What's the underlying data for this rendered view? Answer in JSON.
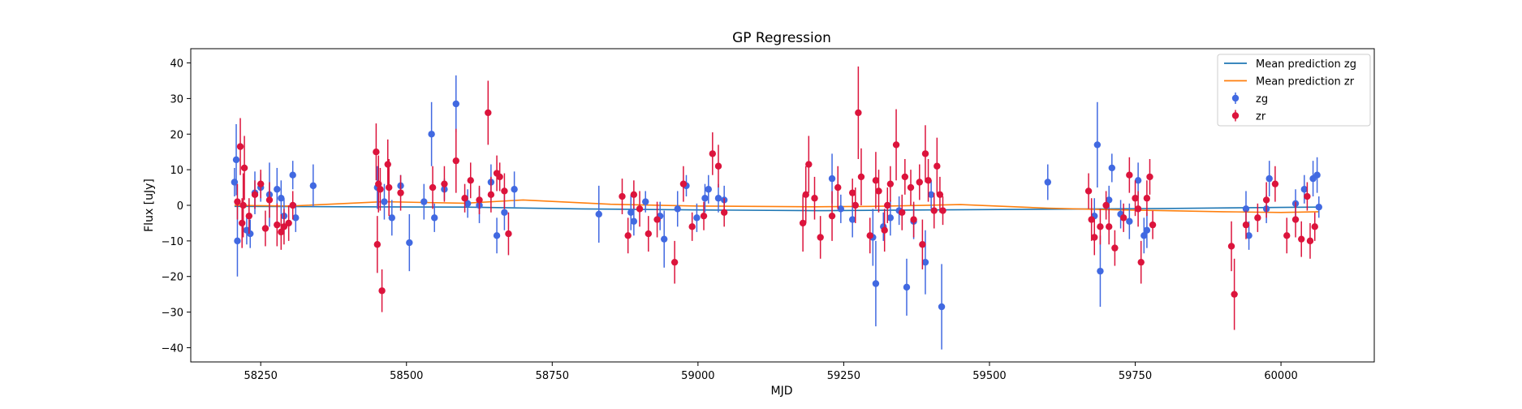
{
  "chart_data": {
    "type": "scatter",
    "title": "GP Regression",
    "xlabel": "MJD",
    "ylabel": "Flux [uJy]",
    "xlim": [
      58130,
      60160
    ],
    "ylim": [
      -44,
      44
    ],
    "xticks": [
      58250,
      58500,
      58750,
      59000,
      59250,
      59500,
      59750,
      60000
    ],
    "yticks": [
      -40,
      -30,
      -20,
      -10,
      0,
      10,
      20,
      30,
      40
    ],
    "grid": false,
    "legend_position": "top-right",
    "colors": {
      "mean_zg": "#1f77b4",
      "mean_zr": "#ff7f0e",
      "points_zg": "#4169e1",
      "points_zr": "#dc143c"
    },
    "legend": [
      {
        "label": "Mean prediction zg",
        "kind": "line",
        "color": "#1f77b4"
      },
      {
        "label": "Mean prediction zr",
        "kind": "line",
        "color": "#ff7f0e"
      },
      {
        "label": "zg",
        "kind": "errorbar",
        "color": "#4169e1"
      },
      {
        "label": "zr",
        "kind": "errorbar",
        "color": "#dc143c"
      }
    ],
    "mean_series": [
      {
        "name": "Mean prediction zg",
        "x": [
          58205,
          58400,
          58600,
          58800,
          59000,
          59200,
          59400,
          59600,
          59800,
          60000,
          60065
        ],
        "y": [
          -0.3,
          -0.4,
          -0.5,
          -1.0,
          -1.3,
          -1.5,
          -1.3,
          -1.1,
          -0.9,
          -0.6,
          -0.5
        ]
      },
      {
        "name": "Mean prediction zr",
        "x": [
          58205,
          58300,
          58460,
          58600,
          58700,
          58850,
          59000,
          59200,
          59300,
          59450,
          59600,
          59700,
          59800,
          59900,
          60000,
          60065
        ],
        "y": [
          0.0,
          -0.2,
          1.0,
          0.6,
          1.5,
          0.3,
          -0.2,
          -0.4,
          -0.3,
          0.2,
          -0.8,
          -1.2,
          -1.5,
          -1.8,
          -2.0,
          -1.8
        ]
      }
    ],
    "series": [
      {
        "name": "zg",
        "points": [
          [
            58205,
            6.5,
            4
          ],
          [
            58208,
            12.8,
            10
          ],
          [
            58210,
            -10,
            10
          ],
          [
            58226,
            -7,
            4
          ],
          [
            58232,
            -8,
            4
          ],
          [
            58240,
            3.5,
            6
          ],
          [
            58250,
            5,
            4
          ],
          [
            58265,
            3,
            9
          ],
          [
            58278,
            4.5,
            6
          ],
          [
            58285,
            2,
            5
          ],
          [
            58290,
            -3,
            5
          ],
          [
            58305,
            8.5,
            4
          ],
          [
            58310,
            -3.5,
            4
          ],
          [
            58340,
            5.5,
            6
          ],
          [
            58450,
            5,
            6
          ],
          [
            58462,
            1,
            5
          ],
          [
            58475,
            -3.5,
            5
          ],
          [
            58490,
            5.5,
            3
          ],
          [
            58505,
            -10.5,
            8
          ],
          [
            58530,
            1,
            5
          ],
          [
            58543,
            20,
            9
          ],
          [
            58548,
            -3.5,
            4
          ],
          [
            58565,
            4.5,
            3
          ],
          [
            58585,
            28.5,
            8
          ],
          [
            58605,
            0.5,
            4
          ],
          [
            58625,
            0,
            5
          ],
          [
            58645,
            6.5,
            5
          ],
          [
            58655,
            -8.5,
            5
          ],
          [
            58668,
            -2,
            5
          ],
          [
            58685,
            4.5,
            5
          ],
          [
            58830,
            -2.5,
            8
          ],
          [
            58885,
            -2,
            5
          ],
          [
            58890,
            -4.5,
            4
          ],
          [
            58910,
            1,
            3
          ],
          [
            58935,
            -3,
            4
          ],
          [
            58942,
            -9.5,
            8
          ],
          [
            58965,
            -1,
            5
          ],
          [
            58980,
            5.5,
            3
          ],
          [
            58998,
            -3.5,
            4
          ],
          [
            59012,
            2,
            4
          ],
          [
            59018,
            4.5,
            4
          ],
          [
            59035,
            2,
            4
          ],
          [
            59045,
            1.5,
            4
          ],
          [
            59230,
            7.5,
            7
          ],
          [
            59245,
            -1,
            4
          ],
          [
            59265,
            -4,
            5
          ],
          [
            59300,
            -9,
            8
          ],
          [
            59305,
            -22,
            12
          ],
          [
            59318,
            -6,
            4
          ],
          [
            59330,
            -3.5,
            5
          ],
          [
            59345,
            -1.5,
            4
          ],
          [
            59358,
            -23,
            8
          ],
          [
            59370,
            -4.5,
            5
          ],
          [
            59390,
            -16,
            9
          ],
          [
            59400,
            3,
            4
          ],
          [
            59418,
            -28.5,
            12
          ],
          [
            59600,
            6.5,
            5
          ],
          [
            59680,
            -3,
            5
          ],
          [
            59685,
            17,
            12
          ],
          [
            59690,
            -18.5,
            10
          ],
          [
            59705,
            1.5,
            4
          ],
          [
            59710,
            10.5,
            4
          ],
          [
            59725,
            -2.5,
            4
          ],
          [
            59740,
            -4.5,
            5
          ],
          [
            59755,
            7,
            5
          ],
          [
            59765,
            -8.5,
            5
          ],
          [
            59770,
            -7,
            5
          ],
          [
            59940,
            -1,
            5
          ],
          [
            59945,
            -8.5,
            4
          ],
          [
            59975,
            -1,
            4
          ],
          [
            59980,
            7.5,
            5
          ],
          [
            60025,
            0.5,
            4
          ],
          [
            60040,
            4.5,
            4
          ],
          [
            60055,
            7.5,
            5
          ],
          [
            60062,
            8.5,
            5
          ],
          [
            60065,
            -0.5,
            3
          ]
        ]
      },
      {
        "name": "zr",
        "points": [
          [
            58210,
            1,
            5
          ],
          [
            58215,
            16.5,
            8
          ],
          [
            58218,
            -5,
            7
          ],
          [
            58220,
            0,
            9
          ],
          [
            58222,
            10.5,
            9
          ],
          [
            58230,
            -3,
            5
          ],
          [
            58240,
            3,
            4
          ],
          [
            58250,
            6,
            4
          ],
          [
            58258,
            -6.5,
            5
          ],
          [
            58265,
            1.5,
            5
          ],
          [
            58278,
            -5.5,
            6
          ],
          [
            58285,
            -7.5,
            5
          ],
          [
            58290,
            -6,
            5
          ],
          [
            58298,
            -5,
            5
          ],
          [
            58305,
            0,
            4
          ],
          [
            58448,
            15,
            8
          ],
          [
            58450,
            -11,
            8
          ],
          [
            58452,
            6,
            8
          ],
          [
            58455,
            4.5,
            6
          ],
          [
            58458,
            -24,
            6
          ],
          [
            58468,
            11.5,
            7
          ],
          [
            58470,
            5,
            8
          ],
          [
            58490,
            3.5,
            5
          ],
          [
            58545,
            5,
            6
          ],
          [
            58565,
            6,
            5
          ],
          [
            58585,
            12.5,
            9
          ],
          [
            58600,
            2,
            4
          ],
          [
            58610,
            7,
            5
          ],
          [
            58625,
            1.5,
            4
          ],
          [
            58640,
            26,
            9
          ],
          [
            58645,
            3,
            5
          ],
          [
            58655,
            9,
            5
          ],
          [
            58660,
            8,
            4
          ],
          [
            58668,
            4,
            5
          ],
          [
            58675,
            -8,
            6
          ],
          [
            58870,
            2.5,
            5
          ],
          [
            58880,
            -8.5,
            5
          ],
          [
            58890,
            3,
            4
          ],
          [
            58900,
            -1,
            5
          ],
          [
            58915,
            -8,
            5
          ],
          [
            58930,
            -4,
            5
          ],
          [
            58960,
            -16,
            6
          ],
          [
            58975,
            6,
            5
          ],
          [
            58990,
            -6,
            4
          ],
          [
            59010,
            -3,
            4
          ],
          [
            59025,
            14.5,
            6
          ],
          [
            59035,
            11,
            6
          ],
          [
            59045,
            -2,
            4
          ],
          [
            59180,
            -5,
            8
          ],
          [
            59185,
            3,
            8
          ],
          [
            59190,
            11.5,
            8
          ],
          [
            59200,
            2,
            6
          ],
          [
            59210,
            -9,
            6
          ],
          [
            59230,
            -3,
            7
          ],
          [
            59240,
            5,
            6
          ],
          [
            59265,
            3.5,
            4
          ],
          [
            59270,
            0,
            5
          ],
          [
            59275,
            26,
            13
          ],
          [
            59280,
            8,
            8
          ],
          [
            59295,
            -8.5,
            5
          ],
          [
            59305,
            7,
            8
          ],
          [
            59310,
            4,
            6
          ],
          [
            59320,
            -7,
            6
          ],
          [
            59325,
            0,
            5
          ],
          [
            59330,
            6,
            5
          ],
          [
            59340,
            17,
            10
          ],
          [
            59350,
            -2,
            5
          ],
          [
            59355,
            8,
            5
          ],
          [
            59365,
            5,
            5
          ],
          [
            59370,
            -4,
            5
          ],
          [
            59380,
            6.5,
            5
          ],
          [
            59385,
            -11,
            7
          ],
          [
            59390,
            14.5,
            8
          ],
          [
            59395,
            7,
            6
          ],
          [
            59405,
            -1.5,
            5
          ],
          [
            59410,
            11,
            8
          ],
          [
            59415,
            3,
            5
          ],
          [
            59420,
            -1.5,
            4
          ],
          [
            59670,
            4,
            5
          ],
          [
            59675,
            -4,
            6
          ],
          [
            59680,
            -9,
            5
          ],
          [
            59690,
            -6,
            5
          ],
          [
            59700,
            0,
            4
          ],
          [
            59705,
            -6,
            5
          ],
          [
            59715,
            -12,
            5
          ],
          [
            59730,
            -3.5,
            4
          ],
          [
            59740,
            8.5,
            5
          ],
          [
            59750,
            2,
            5
          ],
          [
            59755,
            -1,
            5
          ],
          [
            59760,
            -16,
            6
          ],
          [
            59770,
            2,
            5
          ],
          [
            59775,
            8,
            5
          ],
          [
            59780,
            -5.5,
            4
          ],
          [
            59915,
            -11.5,
            7
          ],
          [
            59920,
            -25,
            10
          ],
          [
            59940,
            -5.5,
            4
          ],
          [
            59960,
            -3.5,
            4
          ],
          [
            59975,
            1.5,
            5
          ],
          [
            59990,
            6,
            5
          ],
          [
            60010,
            -8.5,
            5
          ],
          [
            60025,
            -4,
            5
          ],
          [
            60035,
            -9.5,
            5
          ],
          [
            60045,
            2.5,
            4
          ],
          [
            60050,
            -10,
            5
          ],
          [
            60058,
            -6,
            4
          ]
        ]
      }
    ]
  }
}
